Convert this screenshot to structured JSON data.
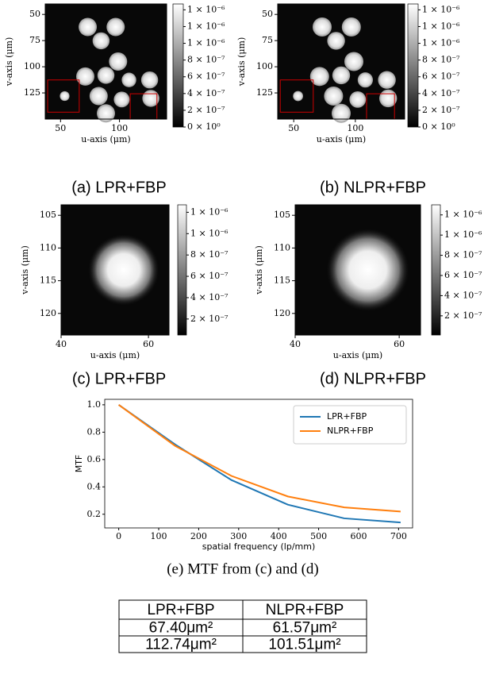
{
  "panels": [
    {
      "xlabel": "u-axis (μm)",
      "ylabel": "v-axis (μm)",
      "xticks": [
        50,
        100
      ],
      "yticks": [
        50,
        75,
        100,
        125
      ],
      "xlim": [
        37,
        140
      ],
      "ylim": [
        40,
        150
      ],
      "colorbar": {
        "lim": [
          0,
          1.47e-06
        ],
        "ticks": [
          {
            "value": 1.4e-06,
            "label": "1 × 10⁻⁶"
          },
          {
            "value": 1.2e-06,
            "label": "1 × 10⁻⁶"
          },
          {
            "value": 1e-06,
            "label": "1 × 10⁻⁶"
          },
          {
            "value": 8e-07,
            "label": "8 × 10⁻⁷"
          },
          {
            "value": 6e-07,
            "label": "6 × 10⁻⁷"
          },
          {
            "value": 4e-07,
            "label": "4 × 10⁻⁷"
          },
          {
            "value": 2e-07,
            "label": "2 × 10⁻⁷"
          },
          {
            "value": 0,
            "label": "0 × 10⁰"
          }
        ]
      },
      "caption": "(a) LPR+FBP"
    },
    {
      "xlabel": "u-axis (μm)",
      "ylabel": "v-axis (μm)",
      "xticks": [
        50,
        100
      ],
      "yticks": [
        50,
        75,
        100,
        125
      ],
      "xlim": [
        37,
        140
      ],
      "ylim": [
        40,
        150
      ],
      "colorbar": {
        "lim": [
          0,
          1.47e-06
        ],
        "ticks": [
          {
            "value": 1.4e-06,
            "label": "1 × 10⁻⁶"
          },
          {
            "value": 1.2e-06,
            "label": "1 × 10⁻⁶"
          },
          {
            "value": 1e-06,
            "label": "1 × 10⁻⁶"
          },
          {
            "value": 8e-07,
            "label": "8 × 10⁻⁷"
          },
          {
            "value": 6e-07,
            "label": "6 × 10⁻⁷"
          },
          {
            "value": 4e-07,
            "label": "4 × 10⁻⁷"
          },
          {
            "value": 2e-07,
            "label": "2 × 10⁻⁷"
          },
          {
            "value": 0,
            "label": "0 × 10⁰"
          }
        ]
      },
      "caption": "(b) NLPR+FBP"
    },
    {
      "xlabel": "u-axis (μm)",
      "ylabel": "v-axis (μm)",
      "xticks": [
        40,
        60
      ],
      "yticks": [
        105,
        110,
        115,
        120
      ],
      "xlim": [
        40,
        64.7
      ],
      "ylim": [
        103.4,
        123.3
      ],
      "colorbar": {
        "lim": [
          5e-08,
          1.27e-06
        ],
        "ticks": [
          {
            "value": 1.2e-06,
            "label": "1 × 10⁻⁶"
          },
          {
            "value": 1e-06,
            "label": "1 × 10⁻⁶"
          },
          {
            "value": 8e-07,
            "label": "8 × 10⁻⁷"
          },
          {
            "value": 6e-07,
            "label": "6 × 10⁻⁷"
          },
          {
            "value": 4e-07,
            "label": "4 × 10⁻⁷"
          },
          {
            "value": 2e-07,
            "label": "2 × 10⁻⁷"
          }
        ]
      },
      "caption": "(c) LPR+FBP"
    },
    {
      "xlabel": "u-axis (μm)",
      "ylabel": "v-axis (μm)",
      "xticks": [
        40,
        60
      ],
      "yticks": [
        105,
        110,
        115,
        120
      ],
      "xlim": [
        40,
        64.1
      ],
      "ylim": [
        103.4,
        123.3
      ],
      "colorbar": {
        "lim": [
          1e-08,
          1.3e-06
        ],
        "ticks": [
          {
            "value": 1.2e-06,
            "label": "1 × 10⁻⁶"
          },
          {
            "value": 1e-06,
            "label": "1 × 10⁻⁶"
          },
          {
            "value": 8e-07,
            "label": "8 × 10⁻⁷"
          },
          {
            "value": 6e-07,
            "label": "6 × 10⁻⁷"
          },
          {
            "value": 4e-07,
            "label": "4 × 10⁻⁷"
          },
          {
            "value": 2e-07,
            "label": "2 × 10⁻⁷"
          }
        ]
      },
      "caption": "(d) NLPR+FBP"
    }
  ],
  "chart_data": {
    "type": "line",
    "xlabel": "spatial frequency (lp/mm)",
    "ylabel": "MTF",
    "x": [
      0,
      141,
      282,
      423,
      564,
      705
    ],
    "series": [
      {
        "name": "LPR+FBP",
        "color": "#1f77b4",
        "values": [
          1.0,
          0.71,
          0.45,
          0.27,
          0.17,
          0.14
        ]
      },
      {
        "name": "NLPR+FBP",
        "color": "#ff7f0e",
        "values": [
          1.0,
          0.7,
          0.48,
          0.33,
          0.25,
          0.22
        ]
      }
    ],
    "xlim": [
      -35,
      735
    ],
    "ylim": [
      0.1,
      1.04
    ],
    "xticks": [
      0,
      100,
      200,
      300,
      400,
      500,
      600,
      700
    ],
    "yticks": [
      0.2,
      0.4,
      0.6,
      0.8,
      {
        "value": 1,
        "label": "1.0"
      }
    ],
    "legend": "upper right",
    "caption": "(e) MTF from (c) and (d)"
  },
  "table": {
    "header": [
      "LPR+FBP",
      "NLPR+FBP"
    ],
    "rows": [
      [
        "67.40μm²",
        "61.57μm²"
      ],
      [
        "112.74μm²",
        "101.51μm²"
      ]
    ]
  }
}
